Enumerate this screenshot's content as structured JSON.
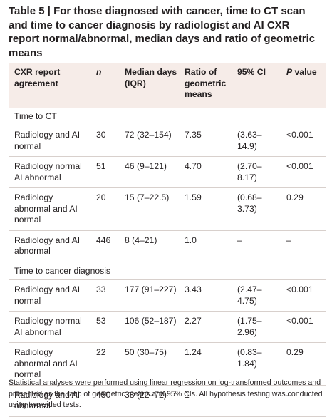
{
  "header": {
    "title": "Table 5 | For those diagnosed with cancer, time to CT scan and time to cancer diagnosis by radiologist and AI CXR report normal/abnormal, median days and ratio of geometric means"
  },
  "table": {
    "columns": [
      "CXR report agreement",
      "n",
      "Median days (IQR)",
      "Ratio of geometric means",
      "95% CI",
      "P value"
    ],
    "sections": [
      {
        "label": "Time to CT",
        "rows": [
          [
            "Radiology and AI normal",
            "30",
            "72 (32–154)",
            "7.35",
            "(3.63–14.9)",
            "<0.001"
          ],
          [
            "Radiology normal AI abnormal",
            "51",
            "46 (9–121)",
            "4.70",
            "(2.70–8.17)",
            "<0.001"
          ],
          [
            "Radiology abnormal and AI normal",
            "20",
            "15 (7–22.5)",
            "1.59",
            "(0.68–3.73)",
            "0.29"
          ],
          [
            "Radiology and AI abnormal",
            "446",
            "8 (4–21)",
            "1.0",
            "–",
            "–"
          ]
        ]
      },
      {
        "label": "Time to cancer diagnosis",
        "rows": [
          [
            "Radiology and AI normal",
            "33",
            "177 (91–227)",
            "3.43",
            "(2.47–4.75)",
            "<0.001"
          ],
          [
            "Radiology normal AI abnormal",
            "53",
            "106 (52–187)",
            "2.27",
            "(1.75–2.96)",
            "<0.001"
          ],
          [
            "Radiology abnormal and AI normal",
            "22",
            "50 (30–75)",
            "1.24",
            "(0.83–1.84)",
            "0.29"
          ],
          [
            "Radiology and AI abnormal",
            "450",
            "38 (22–72)",
            "1",
            "–",
            "–"
          ]
        ]
      }
    ]
  },
  "footnote": "Statistical analyses were performed using linear regression on log-transformed outcomes and presented as the ratio of geometric means and 95% CIs. All hypothesis testing was conducted using two-sided tests."
}
